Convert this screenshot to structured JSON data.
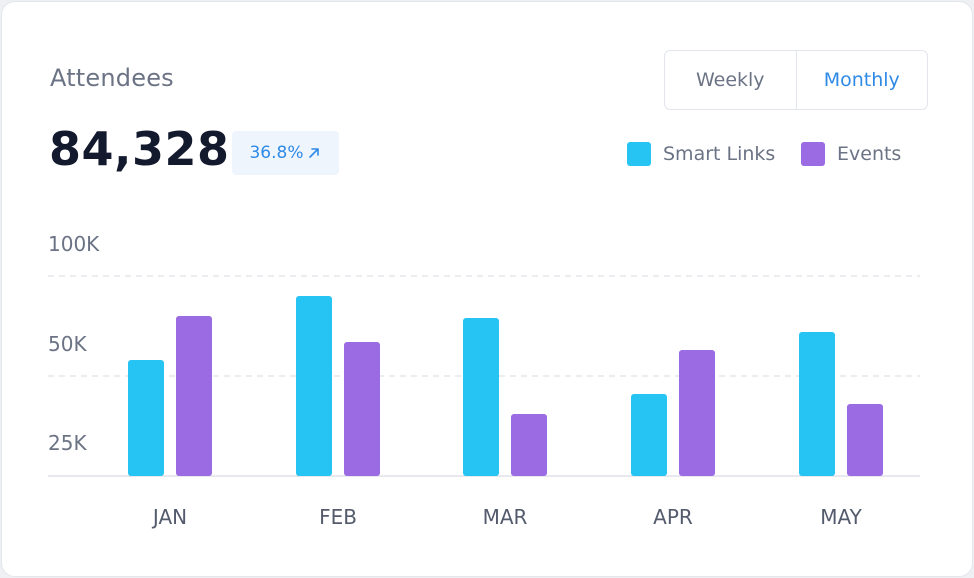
{
  "header": {
    "title": "Attendees",
    "total": "84,328",
    "change": "36.8%",
    "toggle": {
      "weekly": "Weekly",
      "monthly": "Monthly",
      "selected": "Monthly"
    }
  },
  "legend": [
    {
      "label": "Smart Links",
      "color": "#25c4f3"
    },
    {
      "label": "Events",
      "color": "#9a6be3"
    }
  ],
  "chart_data": {
    "type": "bar",
    "categories": [
      "JAN",
      "FEB",
      "MAR",
      "APR",
      "MAY"
    ],
    "series": [
      {
        "name": "Smart Links",
        "values": [
          58,
          90,
          79,
          41,
          72
        ],
        "color": "#25c4f3"
      },
      {
        "name": "Events",
        "values": [
          80,
          67,
          31,
          63,
          36
        ],
        "color": "#9a6be3"
      }
    ],
    "yticks": [
      "100K",
      "50K",
      "25K"
    ],
    "grid": true,
    "legend_position": "top-right"
  }
}
